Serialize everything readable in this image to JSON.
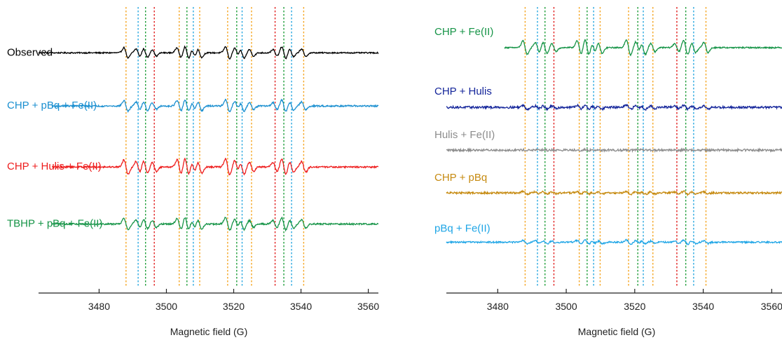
{
  "colors": {
    "axis": "#222222",
    "marker_orange": "#f5a623",
    "marker_blue": "#2aa8e0",
    "marker_green": "#1f9e3a",
    "marker_red": "#e0201f"
  },
  "chart_data": [
    {
      "type": "line",
      "panel": "left",
      "title": "",
      "xlabel": "Magnetic field (G)",
      "ylabel": "",
      "xlim": [
        3462,
        3563
      ],
      "x_ticks": [
        3480,
        3500,
        3520,
        3540,
        3560
      ],
      "x_tick_labels": [
        "3480",
        "3500",
        "3520",
        "3540",
        "3560"
      ],
      "grid": false,
      "legend": "inline labels left of traces",
      "markers": [
        {
          "x": 3488.0,
          "color": "orange"
        },
        {
          "x": 3491.6,
          "color": "blue"
        },
        {
          "x": 3493.8,
          "color": "green"
        },
        {
          "x": 3496.4,
          "color": "red"
        },
        {
          "x": 3503.8,
          "color": "orange"
        },
        {
          "x": 3506.1,
          "color": "green"
        },
        {
          "x": 3508.0,
          "color": "blue"
        },
        {
          "x": 3509.9,
          "color": "orange"
        },
        {
          "x": 3518.2,
          "color": "orange"
        },
        {
          "x": 3520.9,
          "color": "green"
        },
        {
          "x": 3522.5,
          "color": "blue"
        },
        {
          "x": 3525.3,
          "color": "orange"
        },
        {
          "x": 3532.3,
          "color": "red"
        },
        {
          "x": 3534.9,
          "color": "green"
        },
        {
          "x": 3537.2,
          "color": "blue"
        },
        {
          "x": 3540.8,
          "color": "orange"
        }
      ],
      "series": [
        {
          "name": "Observed",
          "color": "#000000",
          "baseline_frac": 0.155,
          "amp": 1.0,
          "noise": 0.04,
          "x_start": 3462
        },
        {
          "name": "CHP + pBq + Fe(II)",
          "color": "#1a8fd0",
          "baseline_frac": 0.36,
          "amp": 1.0,
          "noise": 0.05,
          "x_start": 3466
        },
        {
          "name": "CHP + Hulis + Fe(II)",
          "color": "#ee1c1c",
          "baseline_frac": 0.595,
          "amp": 1.35,
          "noise": 0.05,
          "x_start": 3466
        },
        {
          "name": "TBHP + pBq + Fe(II)",
          "color": "#169447",
          "baseline_frac": 0.815,
          "amp": 1.05,
          "noise": 0.05,
          "x_start": 3466
        }
      ]
    },
    {
      "type": "line",
      "panel": "right",
      "title": "",
      "xlabel": "Magnetic field (G)",
      "ylabel": "",
      "xlim": [
        3465,
        3563
      ],
      "x_ticks": [
        3480,
        3500,
        3520,
        3540,
        3560
      ],
      "x_tick_labels": [
        "3480",
        "3500",
        "3520",
        "3540",
        "3560"
      ],
      "grid": false,
      "legend": "inline labels above traces",
      "markers": [
        {
          "x": 3488.0,
          "color": "orange"
        },
        {
          "x": 3491.6,
          "color": "blue"
        },
        {
          "x": 3493.8,
          "color": "green"
        },
        {
          "x": 3496.4,
          "color": "red"
        },
        {
          "x": 3503.8,
          "color": "orange"
        },
        {
          "x": 3506.1,
          "color": "green"
        },
        {
          "x": 3508.0,
          "color": "blue"
        },
        {
          "x": 3509.9,
          "color": "orange"
        },
        {
          "x": 3518.2,
          "color": "orange"
        },
        {
          "x": 3520.9,
          "color": "green"
        },
        {
          "x": 3522.5,
          "color": "blue"
        },
        {
          "x": 3525.3,
          "color": "orange"
        },
        {
          "x": 3532.3,
          "color": "red"
        },
        {
          "x": 3534.9,
          "color": "green"
        },
        {
          "x": 3537.2,
          "color": "blue"
        },
        {
          "x": 3540.8,
          "color": "orange"
        }
      ],
      "series": [
        {
          "name": "CHP + Fe(II)",
          "color": "#169447",
          "baseline_frac": 0.135,
          "amp": 1.25,
          "noise": 0.04,
          "x_start": 3482
        },
        {
          "name": "CHP + Hulis",
          "color": "#13249a",
          "baseline_frac": 0.365,
          "amp": 0.35,
          "noise": 0.07,
          "x_start": 3465
        },
        {
          "name": "Hulis  + Fe(II)",
          "color": "#8c8c8c",
          "baseline_frac": 0.53,
          "amp": 0.04,
          "noise": 0.07,
          "x_start": 3465
        },
        {
          "name": "CHP + pBq",
          "color": "#c68a10",
          "baseline_frac": 0.695,
          "amp": 0.25,
          "noise": 0.06,
          "x_start": 3465
        },
        {
          "name": "pBq + Fe(II)",
          "color": "#1ea5e6",
          "baseline_frac": 0.885,
          "amp": 0.35,
          "noise": 0.05,
          "x_start": 3465
        }
      ]
    }
  ]
}
